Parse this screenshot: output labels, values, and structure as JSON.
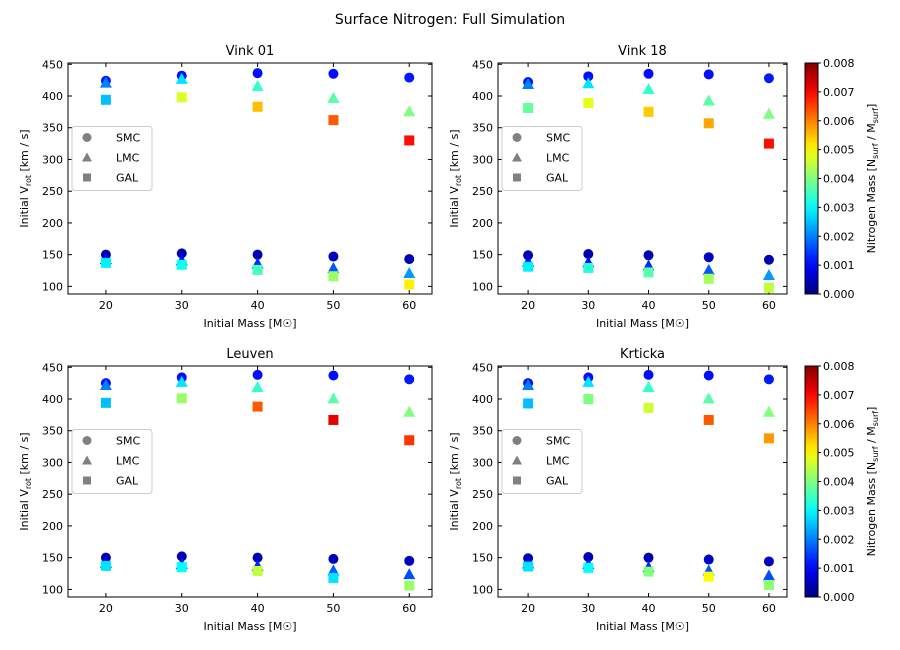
{
  "figure": {
    "suptitle": "Surface Nitrogen: Full Simulation"
  },
  "colorbar": {
    "label": "Nitrogen Mass [N_surf / M_surf]",
    "min": 0.0,
    "max": 0.008,
    "ticks": [
      "0.000",
      "0.001",
      "0.002",
      "0.003",
      "0.004",
      "0.005",
      "0.006",
      "0.007",
      "0.008"
    ],
    "colormap": "jet"
  },
  "legend": {
    "entries": [
      {
        "label": "SMC",
        "marker": "circle"
      },
      {
        "label": "LMC",
        "marker": "triangle"
      },
      {
        "label": "GAL",
        "marker": "square"
      }
    ],
    "marker_color": "#808080"
  },
  "chart_data": [
    {
      "type": "scatter",
      "title": "Vink 01",
      "xlabel": "Initial Mass [M☉]",
      "ylabel": "Initial V_rot [km / s]",
      "x_ticks": [
        20,
        30,
        40,
        50,
        60
      ],
      "y_ticks": [
        100,
        150,
        200,
        250,
        300,
        350,
        400,
        450
      ],
      "xlim": [
        15,
        63
      ],
      "ylim": [
        88,
        452
      ],
      "color_key": "N",
      "series": [
        {
          "name": "SMC",
          "marker": "circle",
          "points": [
            {
              "x": 20,
              "y": 424,
              "N": 0.0012
            },
            {
              "x": 30,
              "y": 432,
              "N": 0.0011
            },
            {
              "x": 40,
              "y": 436,
              "N": 0.0011
            },
            {
              "x": 50,
              "y": 435,
              "N": 0.0011
            },
            {
              "x": 60,
              "y": 429,
              "N": 0.0012
            },
            {
              "x": 20,
              "y": 150,
              "N": 0.0004
            },
            {
              "x": 30,
              "y": 152,
              "N": 0.0004
            },
            {
              "x": 40,
              "y": 150,
              "N": 0.0004
            },
            {
              "x": 50,
              "y": 147,
              "N": 0.0005
            },
            {
              "x": 60,
              "y": 143,
              "N": 0.0004
            }
          ]
        },
        {
          "name": "LMC",
          "marker": "triangle",
          "points": [
            {
              "x": 20,
              "y": 421,
              "N": 0.002
            },
            {
              "x": 30,
              "y": 427,
              "N": 0.0028
            },
            {
              "x": 40,
              "y": 416,
              "N": 0.0034
            },
            {
              "x": 50,
              "y": 397,
              "N": 0.0037
            },
            {
              "x": 60,
              "y": 376,
              "N": 0.004
            },
            {
              "x": 20,
              "y": 143,
              "N": 0.001
            },
            {
              "x": 30,
              "y": 141,
              "N": 0.0011
            },
            {
              "x": 40,
              "y": 136,
              "N": 0.0013
            },
            {
              "x": 50,
              "y": 129,
              "N": 0.0017
            },
            {
              "x": 60,
              "y": 121,
              "N": 0.0022
            }
          ]
        },
        {
          "name": "GAL",
          "marker": "square",
          "points": [
            {
              "x": 20,
              "y": 394,
              "N": 0.0025
            },
            {
              "x": 30,
              "y": 398,
              "N": 0.0047
            },
            {
              "x": 40,
              "y": 383,
              "N": 0.0055
            },
            {
              "x": 50,
              "y": 362,
              "N": 0.0063
            },
            {
              "x": 60,
              "y": 330,
              "N": 0.0069
            },
            {
              "x": 20,
              "y": 137,
              "N": 0.0029
            },
            {
              "x": 30,
              "y": 134,
              "N": 0.0031
            },
            {
              "x": 40,
              "y": 126,
              "N": 0.0035
            },
            {
              "x": 50,
              "y": 116,
              "N": 0.0042
            },
            {
              "x": 60,
              "y": 103,
              "N": 0.0051
            }
          ]
        }
      ]
    },
    {
      "type": "scatter",
      "title": "Vink 18",
      "xlabel": "Initial Mass [M☉]",
      "ylabel": "Initial V_rot [km / s]",
      "x_ticks": [
        20,
        30,
        40,
        50,
        60
      ],
      "y_ticks": [
        100,
        150,
        200,
        250,
        300,
        350,
        400,
        450
      ],
      "xlim": [
        15,
        63
      ],
      "ylim": [
        88,
        452
      ],
      "color_key": "N",
      "series": [
        {
          "name": "SMC",
          "marker": "circle",
          "points": [
            {
              "x": 20,
              "y": 422,
              "N": 0.0012
            },
            {
              "x": 30,
              "y": 431,
              "N": 0.0011
            },
            {
              "x": 40,
              "y": 435,
              "N": 0.0011
            },
            {
              "x": 50,
              "y": 434,
              "N": 0.0011
            },
            {
              "x": 60,
              "y": 428,
              "N": 0.0012
            },
            {
              "x": 20,
              "y": 149,
              "N": 0.0004
            },
            {
              "x": 30,
              "y": 151,
              "N": 0.0004
            },
            {
              "x": 40,
              "y": 149,
              "N": 0.0004
            },
            {
              "x": 50,
              "y": 146,
              "N": 0.0005
            },
            {
              "x": 60,
              "y": 142,
              "N": 0.0004
            }
          ]
        },
        {
          "name": "LMC",
          "marker": "triangle",
          "points": [
            {
              "x": 20,
              "y": 419,
              "N": 0.002
            },
            {
              "x": 30,
              "y": 420,
              "N": 0.0028
            },
            {
              "x": 40,
              "y": 411,
              "N": 0.0034
            },
            {
              "x": 50,
              "y": 393,
              "N": 0.0037
            },
            {
              "x": 60,
              "y": 372,
              "N": 0.004
            },
            {
              "x": 20,
              "y": 139,
              "N": 0.001
            },
            {
              "x": 30,
              "y": 138,
              "N": 0.0011
            },
            {
              "x": 40,
              "y": 133,
              "N": 0.0013
            },
            {
              "x": 50,
              "y": 126,
              "N": 0.0017
            },
            {
              "x": 60,
              "y": 118,
              "N": 0.0022
            }
          ]
        },
        {
          "name": "GAL",
          "marker": "square",
          "points": [
            {
              "x": 20,
              "y": 381,
              "N": 0.0038
            },
            {
              "x": 30,
              "y": 389,
              "N": 0.0048
            },
            {
              "x": 40,
              "y": 375,
              "N": 0.0054
            },
            {
              "x": 50,
              "y": 357,
              "N": 0.0057
            },
            {
              "x": 60,
              "y": 325,
              "N": 0.0069
            },
            {
              "x": 20,
              "y": 131,
              "N": 0.0029
            },
            {
              "x": 30,
              "y": 129,
              "N": 0.0033
            },
            {
              "x": 40,
              "y": 122,
              "N": 0.0037
            },
            {
              "x": 50,
              "y": 112,
              "N": 0.0043
            },
            {
              "x": 60,
              "y": 98,
              "N": 0.0045
            }
          ]
        }
      ]
    },
    {
      "type": "scatter",
      "title": "Leuven",
      "xlabel": "Initial Mass [M☉]",
      "ylabel": "Initial V_rot [km / s]",
      "x_ticks": [
        20,
        30,
        40,
        50,
        60
      ],
      "y_ticks": [
        100,
        150,
        200,
        250,
        300,
        350,
        400,
        450
      ],
      "xlim": [
        15,
        63
      ],
      "ylim": [
        88,
        452
      ],
      "color_key": "N",
      "series": [
        {
          "name": "SMC",
          "marker": "circle",
          "points": [
            {
              "x": 20,
              "y": 425,
              "N": 0.0011
            },
            {
              "x": 30,
              "y": 434,
              "N": 0.0011
            },
            {
              "x": 40,
              "y": 438,
              "N": 0.0011
            },
            {
              "x": 50,
              "y": 437,
              "N": 0.0011
            },
            {
              "x": 60,
              "y": 431,
              "N": 0.0012
            },
            {
              "x": 20,
              "y": 150,
              "N": 0.0004
            },
            {
              "x": 30,
              "y": 152,
              "N": 0.0004
            },
            {
              "x": 40,
              "y": 150,
              "N": 0.0004
            },
            {
              "x": 50,
              "y": 148,
              "N": 0.0005
            },
            {
              "x": 60,
              "y": 145,
              "N": 0.0005
            }
          ]
        },
        {
          "name": "LMC",
          "marker": "triangle",
          "points": [
            {
              "x": 20,
              "y": 422,
              "N": 0.002
            },
            {
              "x": 30,
              "y": 427,
              "N": 0.0028
            },
            {
              "x": 40,
              "y": 419,
              "N": 0.0034
            },
            {
              "x": 50,
              "y": 401,
              "N": 0.0037
            },
            {
              "x": 60,
              "y": 380,
              "N": 0.004
            },
            {
              "x": 20,
              "y": 142,
              "N": 0.001
            },
            {
              "x": 30,
              "y": 140,
              "N": 0.0012
            },
            {
              "x": 40,
              "y": 137,
              "N": 0.0013
            },
            {
              "x": 50,
              "y": 130,
              "N": 0.0017
            },
            {
              "x": 60,
              "y": 124,
              "N": 0.0016
            }
          ]
        },
        {
          "name": "GAL",
          "marker": "square",
          "points": [
            {
              "x": 20,
              "y": 394,
              "N": 0.0025
            },
            {
              "x": 30,
              "y": 401,
              "N": 0.0042
            },
            {
              "x": 40,
              "y": 388,
              "N": 0.0063
            },
            {
              "x": 50,
              "y": 367,
              "N": 0.0072
            },
            {
              "x": 60,
              "y": 335,
              "N": 0.0066
            },
            {
              "x": 20,
              "y": 137,
              "N": 0.0028
            },
            {
              "x": 30,
              "y": 135,
              "N": 0.003
            },
            {
              "x": 40,
              "y": 129,
              "N": 0.0045
            },
            {
              "x": 50,
              "y": 118,
              "N": 0.0028
            },
            {
              "x": 60,
              "y": 106,
              "N": 0.0042
            }
          ]
        }
      ]
    },
    {
      "type": "scatter",
      "title": "Krticka",
      "xlabel": "Initial Mass [M☉]",
      "ylabel": "Initial V_rot [km / s]",
      "x_ticks": [
        20,
        30,
        40,
        50,
        60
      ],
      "y_ticks": [
        100,
        150,
        200,
        250,
        300,
        350,
        400,
        450
      ],
      "xlim": [
        15,
        63
      ],
      "ylim": [
        88,
        452
      ],
      "color_key": "N",
      "series": [
        {
          "name": "SMC",
          "marker": "circle",
          "points": [
            {
              "x": 20,
              "y": 425,
              "N": 0.0011
            },
            {
              "x": 30,
              "y": 434,
              "N": 0.0011
            },
            {
              "x": 40,
              "y": 438,
              "N": 0.0011
            },
            {
              "x": 50,
              "y": 437,
              "N": 0.0011
            },
            {
              "x": 60,
              "y": 431,
              "N": 0.0012
            },
            {
              "x": 20,
              "y": 149,
              "N": 0.0004
            },
            {
              "x": 30,
              "y": 151,
              "N": 0.0004
            },
            {
              "x": 40,
              "y": 150,
              "N": 0.0004
            },
            {
              "x": 50,
              "y": 147,
              "N": 0.0005
            },
            {
              "x": 60,
              "y": 144,
              "N": 0.0005
            }
          ]
        },
        {
          "name": "LMC",
          "marker": "triangle",
          "points": [
            {
              "x": 20,
              "y": 422,
              "N": 0.002
            },
            {
              "x": 30,
              "y": 427,
              "N": 0.0028
            },
            {
              "x": 40,
              "y": 419,
              "N": 0.0034
            },
            {
              "x": 50,
              "y": 401,
              "N": 0.0037
            },
            {
              "x": 60,
              "y": 380,
              "N": 0.004
            },
            {
              "x": 20,
              "y": 141,
              "N": 0.001
            },
            {
              "x": 30,
              "y": 140,
              "N": 0.0012
            },
            {
              "x": 40,
              "y": 135,
              "N": 0.0013
            },
            {
              "x": 50,
              "y": 130,
              "N": 0.0017
            },
            {
              "x": 60,
              "y": 122,
              "N": 0.0016
            }
          ]
        },
        {
          "name": "GAL",
          "marker": "square",
          "points": [
            {
              "x": 20,
              "y": 393,
              "N": 0.0025
            },
            {
              "x": 30,
              "y": 400,
              "N": 0.004
            },
            {
              "x": 40,
              "y": 386,
              "N": 0.0046
            },
            {
              "x": 50,
              "y": 367,
              "N": 0.0063
            },
            {
              "x": 60,
              "y": 338,
              "N": 0.0058
            },
            {
              "x": 20,
              "y": 136,
              "N": 0.0028
            },
            {
              "x": 30,
              "y": 134,
              "N": 0.003
            },
            {
              "x": 40,
              "y": 128,
              "N": 0.004
            },
            {
              "x": 50,
              "y": 120,
              "N": 0.005
            },
            {
              "x": 60,
              "y": 107,
              "N": 0.0041
            }
          ]
        }
      ]
    }
  ]
}
